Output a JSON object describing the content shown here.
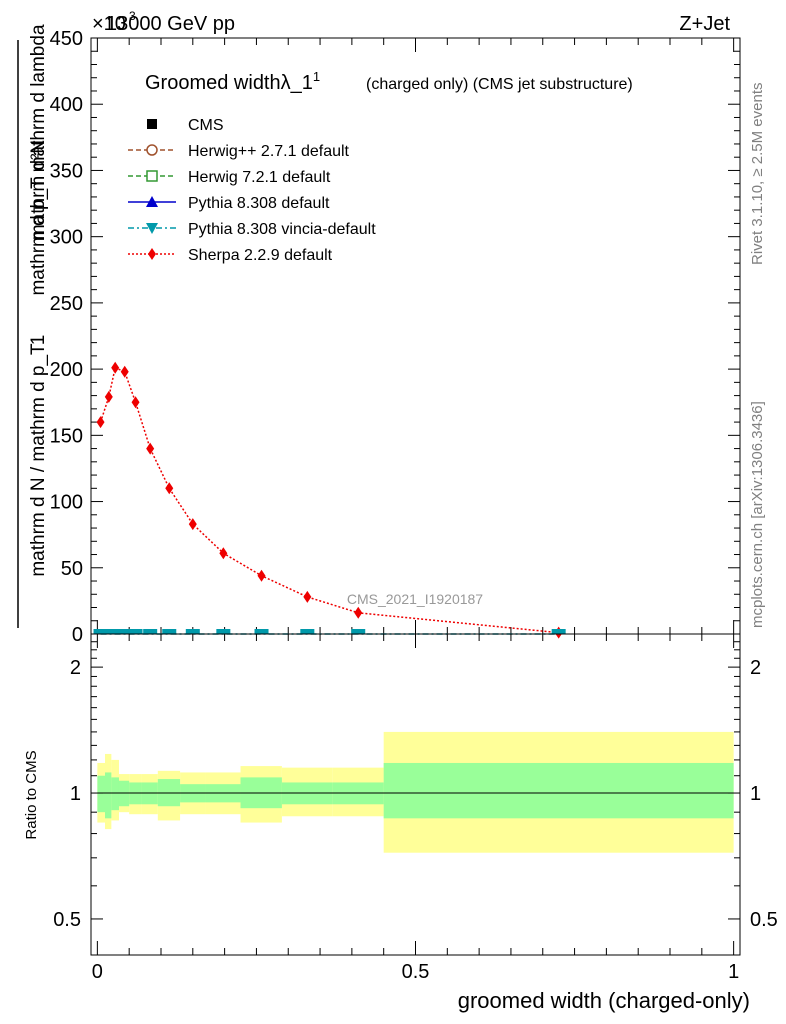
{
  "header": {
    "left": "13000 GeV pp",
    "exponent": "×10",
    "exponent_power": "3",
    "right": "Z+Jet"
  },
  "side_labels": {
    "rivet": "Rivet 3.1.10, ≥ 2.5M events",
    "mcplots": "mcplots.cern.ch [arXiv:1306.3436]"
  },
  "watermark": "CMS_2021_I1920187",
  "chart_data": [
    {
      "type": "line",
      "panel": "main",
      "title": "Groomed widthλ_1",
      "title_superscript": "1",
      "subtitle": "(charged only) (CMS jet substructure)",
      "ylabel_numerator": "mathrm d²N",
      "ylabel_denominator": "mathrm d p_T mathrm d lambda",
      "ylabel_prefix_numerator": "1",
      "ylabel_prefix_denominator": "mathrm d N / mathrm d p_T",
      "ylim": [
        0,
        450
      ],
      "xlim": [
        -0.01,
        1.01
      ],
      "yticks": [
        0,
        50,
        100,
        150,
        200,
        250,
        300,
        350,
        400,
        450
      ],
      "y_scale_note": "×10³",
      "legend_position": "top-left",
      "legend": [
        {
          "label": "CMS",
          "color": "#000000",
          "marker": "square",
          "style": "none"
        },
        {
          "label": "Herwig++ 2.7.1 default",
          "color": "#a0522d",
          "marker": "circle-open",
          "style": "dashed"
        },
        {
          "label": "Herwig 7.2.1 default",
          "color": "#339933",
          "marker": "square-open",
          "style": "dashed"
        },
        {
          "label": "Pythia 8.308 default",
          "color": "#0000cc",
          "marker": "triangle-up",
          "style": "solid"
        },
        {
          "label": "Pythia 8.308 vincia-default",
          "color": "#0099aa",
          "marker": "triangle-down",
          "style": "dashdot"
        },
        {
          "label": "Sherpa 2.2.9 default",
          "color": "#ee0000",
          "marker": "diamond",
          "style": "dotted"
        }
      ],
      "series": [
        {
          "name": "Sherpa 2.2.9 default",
          "color": "#ee0000",
          "x": [
            0.005,
            0.018,
            0.028,
            0.043,
            0.06,
            0.083,
            0.113,
            0.15,
            0.198,
            0.258,
            0.33,
            0.41,
            0.725
          ],
          "y": [
            160,
            179,
            201,
            198,
            175,
            140,
            110,
            83,
            61,
            44,
            28,
            16,
            1
          ]
        },
        {
          "name": "Pythia 8.308 vincia-default",
          "color": "#0099aa",
          "x": [
            0.005,
            0.018,
            0.028,
            0.043,
            0.06,
            0.083,
            0.113,
            0.15,
            0.198,
            0.258,
            0.33,
            0.41,
            0.725
          ],
          "y": [
            0,
            0,
            0,
            0,
            0,
            0,
            0,
            0,
            0,
            0,
            0,
            0,
            0
          ]
        }
      ]
    },
    {
      "type": "area",
      "panel": "ratio",
      "ylabel": "Ratio to CMS",
      "xlabel": "groomed width (charged-only)",
      "xlim": [
        -0.01,
        1.01
      ],
      "ylim": [
        0.41,
        2.4
      ],
      "y_scale": "log",
      "yticks": [
        0.5,
        1,
        2
      ],
      "ytick_labels": [
        "0.5",
        "1",
        "2"
      ],
      "xticks": [
        0,
        0.5,
        1
      ],
      "xtick_labels": [
        "0",
        "0.5",
        "1"
      ],
      "bin_edges": [
        0,
        0.012,
        0.022,
        0.034,
        0.05,
        0.07,
        0.095,
        0.13,
        0.17,
        0.225,
        0.29,
        0.37,
        0.45,
        1.0
      ],
      "stat_band": [
        [
          0.9,
          1.1
        ],
        [
          0.87,
          1.12
        ],
        [
          0.91,
          1.09
        ],
        [
          0.93,
          1.07
        ],
        [
          0.94,
          1.06
        ],
        [
          0.94,
          1.06
        ],
        [
          0.93,
          1.08
        ],
        [
          0.95,
          1.05
        ],
        [
          0.95,
          1.05
        ],
        [
          0.92,
          1.09
        ],
        [
          0.94,
          1.06
        ],
        [
          0.94,
          1.06
        ],
        [
          0.87,
          1.18
        ]
      ],
      "total_band": [
        [
          0.85,
          1.18
        ],
        [
          0.82,
          1.24
        ],
        [
          0.86,
          1.2
        ],
        [
          0.9,
          1.11
        ],
        [
          0.89,
          1.11
        ],
        [
          0.89,
          1.11
        ],
        [
          0.86,
          1.13
        ],
        [
          0.89,
          1.12
        ],
        [
          0.89,
          1.12
        ],
        [
          0.85,
          1.16
        ],
        [
          0.88,
          1.15
        ],
        [
          0.88,
          1.15
        ],
        [
          0.72,
          1.4
        ]
      ],
      "reference_line": 1
    }
  ],
  "colors": {
    "stat_band": "#99ff99",
    "total_band": "#ffff99"
  }
}
